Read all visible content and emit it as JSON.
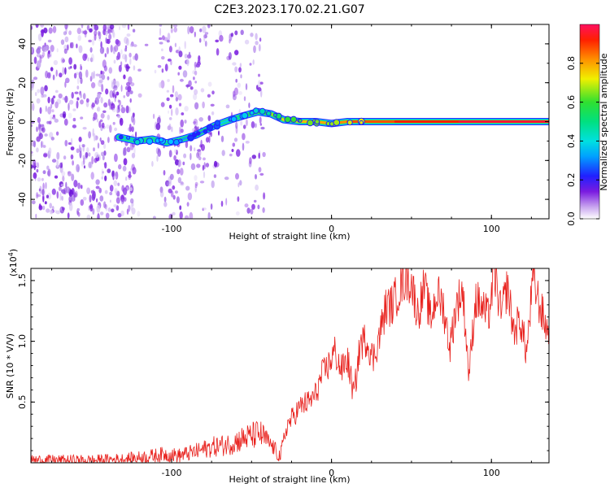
{
  "title": "C2E3.2023.170.02.21.G07",
  "chart_data": [
    {
      "type": "heatmap",
      "xlabel": "Height of straight line (km)",
      "ylabel": "Frequency (Hz)",
      "xlim": [
        -188,
        136
      ],
      "ylim": [
        -50,
        50
      ],
      "xticks": [
        -100,
        0,
        100
      ],
      "xtick_labels": [
        "-100",
        "0",
        "100"
      ],
      "yticks": [
        -40,
        -20,
        0,
        20,
        40
      ],
      "ytick_labels": [
        "-40",
        "-20",
        "0",
        "20",
        "40"
      ],
      "colorbar": {
        "label": "Normalized spectral amplitude",
        "range": [
          0,
          1
        ],
        "ticks": [
          0.0,
          0.2,
          0.4,
          0.6,
          0.8
        ],
        "tick_labels": [
          "0.0",
          "0.2",
          "0.4",
          "0.6",
          "0.8"
        ],
        "colors": [
          "#ffffff",
          "#7a1be0",
          "#2020ff",
          "#00c8ff",
          "#00e0a0",
          "#30e030",
          "#f0f000",
          "#ff9000",
          "#ff2000",
          "#ff1060"
        ]
      },
      "ridge": [
        {
          "x": -133,
          "y": -8,
          "a": 0.3
        },
        {
          "x": -122,
          "y": -10,
          "a": 0.55
        },
        {
          "x": -112,
          "y": -9,
          "a": 0.45
        },
        {
          "x": -103,
          "y": -11,
          "a": 0.5
        },
        {
          "x": -93,
          "y": -9,
          "a": 0.4
        },
        {
          "x": -85,
          "y": -7,
          "a": 0.3
        },
        {
          "x": -73,
          "y": -2,
          "a": 0.35
        },
        {
          "x": -63,
          "y": 1,
          "a": 0.45
        },
        {
          "x": -55,
          "y": 3,
          "a": 0.5
        },
        {
          "x": -46,
          "y": 5,
          "a": 0.55
        },
        {
          "x": -38,
          "y": 4,
          "a": 0.6
        },
        {
          "x": -30,
          "y": 1,
          "a": 0.7
        },
        {
          "x": -20,
          "y": 0,
          "a": 0.75
        },
        {
          "x": -10,
          "y": 0,
          "a": 0.78
        },
        {
          "x": 0,
          "y": -1,
          "a": 0.8
        },
        {
          "x": 10,
          "y": 0,
          "a": 0.85
        },
        {
          "x": 40,
          "y": 0,
          "a": 0.9
        },
        {
          "x": 80,
          "y": 0,
          "a": 0.95
        },
        {
          "x": 136,
          "y": 0,
          "a": 0.98
        }
      ],
      "noise_bands": [
        {
          "x_from": -188,
          "x_to": -122,
          "density": 1.0
        },
        {
          "x_from": -122,
          "x_to": -108,
          "density": 0.12
        },
        {
          "x_from": -108,
          "x_to": -75,
          "density": 0.65
        },
        {
          "x_from": -75,
          "x_to": -60,
          "density": 0.25
        },
        {
          "x_from": -60,
          "x_to": -42,
          "density": 0.45
        }
      ]
    },
    {
      "type": "line",
      "xlabel": "Height of straight line (km)",
      "ylabel": "SNR (10 * V/V)",
      "yscale_label": "(x10",
      "yscale_exp": "4",
      "xlim": [
        -188,
        136
      ],
      "ylim": [
        0,
        1.6
      ],
      "xticks": [
        -100,
        0,
        100
      ],
      "xtick_labels": [
        "-100",
        "0",
        "100"
      ],
      "yticks": [
        0.5,
        1.0,
        1.5
      ],
      "ytick_labels": [
        "0.5",
        "1.0",
        "1.5"
      ],
      "color": "#e8201c",
      "series": [
        {
          "x": [
            -188,
            -170,
            -150,
            -130,
            -115,
            -105,
            -95,
            -85,
            -75,
            -65,
            -55,
            -45,
            -38,
            -32,
            -28,
            -22,
            -18,
            -14,
            -10,
            -6,
            -2,
            2,
            6,
            10,
            14,
            18,
            22,
            26,
            30,
            34,
            38,
            42,
            46,
            50,
            54,
            58,
            62,
            66,
            70,
            74,
            78,
            82,
            86,
            90,
            94,
            98,
            102,
            106,
            110,
            114,
            118,
            122,
            126,
            130,
            136
          ],
          "y": [
            0.02,
            0.02,
            0.02,
            0.03,
            0.05,
            0.07,
            0.06,
            0.09,
            0.13,
            0.15,
            0.2,
            0.24,
            0.15,
            0.05,
            0.3,
            0.42,
            0.48,
            0.5,
            0.56,
            0.72,
            0.8,
            0.92,
            0.76,
            0.85,
            0.55,
            0.98,
            1.02,
            0.85,
            1.05,
            1.28,
            1.3,
            1.42,
            1.52,
            1.48,
            1.22,
            1.45,
            1.18,
            1.4,
            1.28,
            0.95,
            1.3,
            1.42,
            0.72,
            1.35,
            1.28,
            1.2,
            1.56,
            1.22,
            1.45,
            1.08,
            1.18,
            0.9,
            1.52,
            1.3,
            1.05
          ]
        }
      ]
    }
  ]
}
